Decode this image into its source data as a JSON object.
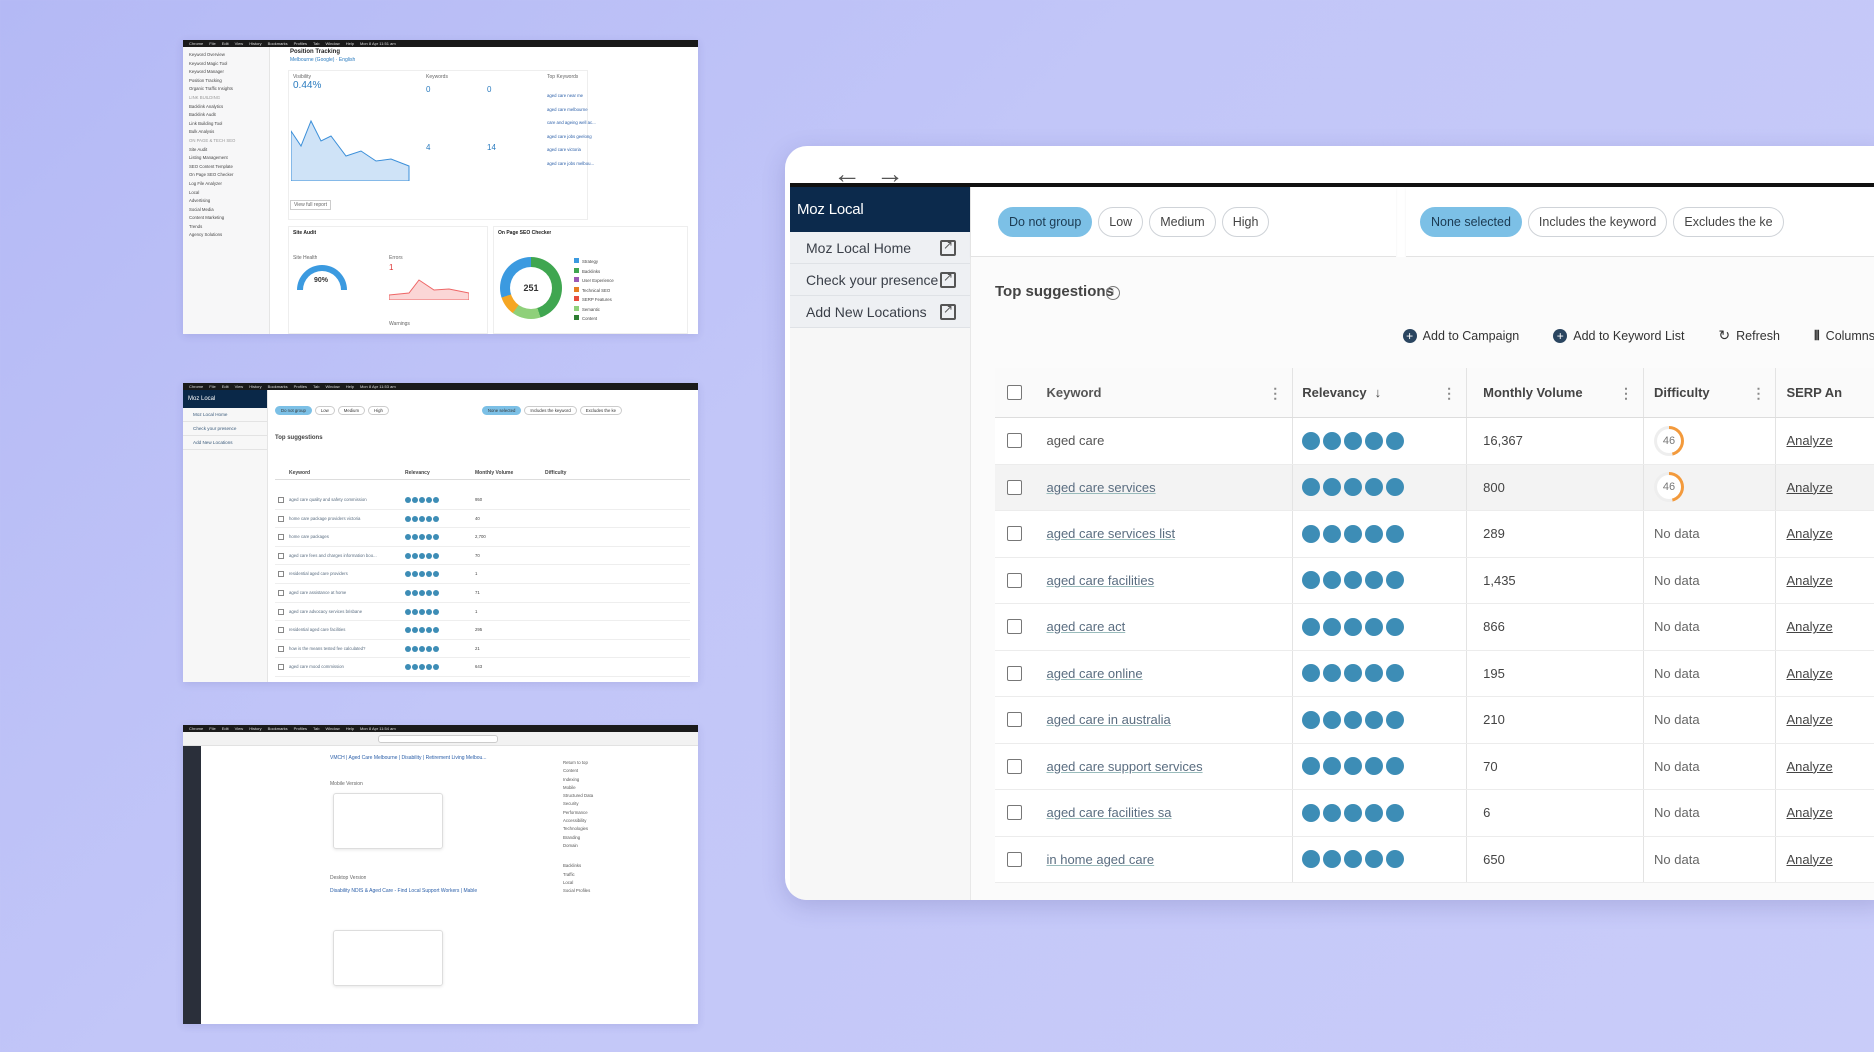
{
  "thumb1": {
    "menubar": [
      "Chrome",
      "File",
      "Edit",
      "View",
      "History",
      "Bookmarks",
      "Profiles",
      "Tab",
      "Window",
      "Help",
      "Mon 8 Apr 11:51 am"
    ],
    "sidebar": [
      "Keyword Overview",
      "Keyword Magic Tool",
      "Keyword Manager",
      "Position Tracking",
      "Organic Traffic Insights",
      "LINK BUILDING",
      "Backlink Analytics",
      "Backlink Audit",
      "Link Building Tool",
      "Bulk Analysis",
      "ON PAGE & TECH SEO",
      "Site Audit",
      "Listing Management",
      "SEO Content Template",
      "On Page SEO Checker",
      "Log File Analyzer",
      "Local",
      "Advertising",
      "Social Media",
      "Content Marketing",
      "Trends",
      "Agency Solutions"
    ],
    "title": "Position Tracking",
    "location": "Melbourne (Google) · English",
    "visibility_label": "Visibility",
    "visibility_value": "0.44%",
    "keywords_label": "Keywords",
    "top3": "0",
    "top10": "0",
    "top20": "4",
    "top100": "14",
    "top_keywords_label": "Top Keywords",
    "top_keywords": [
      "aged care near me",
      "aged care melbourne",
      "care and ageing well ac...",
      "aged care jobs geelong",
      "aged care victoria",
      "aged care jobs melbou..."
    ],
    "view_report": "View full report",
    "site_audit": "Site Audit",
    "site_health_label": "Site Health",
    "site_health": "90%",
    "errors_label": "Errors",
    "errors": "1",
    "warnings_label": "Warnings",
    "onpage_label": "On Page SEO Checker",
    "total_ideas": "251",
    "ideas_legend": [
      "Strategy",
      "Backlinks",
      "User Experience",
      "Technical SEO",
      "SERP Features",
      "Semantic",
      "Content"
    ]
  },
  "thumb2": {
    "menubar": [
      "Chrome",
      "File",
      "Edit",
      "View",
      "History",
      "Bookmarks",
      "Profiles",
      "Tab",
      "Window",
      "Help",
      "Mon 8 Apr 11:53 am"
    ],
    "keywords": [
      "aged care quality and safety commission",
      "home care package providers victoria",
      "home care packages",
      "aged care fees and charges information boo...",
      "residential aged care providers",
      "aged care assistance at home",
      "aged care advocacy services brisbane",
      "residential aged care facilities",
      "how is the means tested fee calculated?",
      "aged care mood commission"
    ],
    "volumes": [
      "950",
      "40",
      "2,700",
      "70",
      "1",
      "71",
      "1",
      "295",
      "21",
      "643"
    ]
  },
  "thumb3": {
    "menubar": [
      "Chrome",
      "File",
      "Edit",
      "View",
      "History",
      "Bookmarks",
      "Profiles",
      "Tab",
      "Window",
      "Help",
      "Mon 8 Apr 11:54 am"
    ],
    "result1_title": "VMCH | Aged Care Melbourne | Disability | Retirement Living Melbou...",
    "result2_title": "Disability NDIS & Aged Care - Find Local Support Workers | Mable",
    "mobile_version": "Mobile Version",
    "desktop_version": "Desktop Version",
    "right_links": [
      "Return to top",
      "Content",
      "Indexing",
      "Mobile",
      "Structured Data",
      "Security",
      "Performance",
      "Accessibility",
      "Technologies",
      "Branding",
      "Domain",
      "Backlinks",
      "Traffic",
      "Local",
      "Social Profiles"
    ]
  },
  "panel": {
    "back": "←",
    "forward": "→",
    "sidebar_title": "Moz Local",
    "sidebar_items": [
      {
        "label": "Moz Local Home"
      },
      {
        "label": "Check your presence"
      },
      {
        "label": "Add New Locations"
      }
    ],
    "group_pills": [
      "Do not group",
      "Low",
      "Medium",
      "High"
    ],
    "filter_pills": [
      "None selected",
      "Includes the keyword",
      "Excludes the ke"
    ],
    "top_suggestions": "Top suggestions",
    "actions": {
      "add_campaign": "Add to Campaign",
      "add_keyword_list": "Add to Keyword List",
      "refresh": "Refresh",
      "columns": "Columns"
    },
    "columns": {
      "keyword": "Keyword",
      "relevancy": "Relevancy",
      "monthly_volume": "Monthly Volume",
      "difficulty": "Difficulty",
      "serp": "SERP An"
    },
    "rows": [
      {
        "keyword": "aged care",
        "volume": "16,367",
        "difficulty": "46",
        "serp": "Analyze"
      },
      {
        "keyword": "aged care services",
        "volume": "800",
        "difficulty": "46",
        "serp": "Analyze"
      },
      {
        "keyword": "aged care services list",
        "volume": "289",
        "difficulty": "No data",
        "serp": "Analyze"
      },
      {
        "keyword": "aged care facilities",
        "volume": "1,435",
        "difficulty": "No data",
        "serp": "Analyze"
      },
      {
        "keyword": "aged care act",
        "volume": "866",
        "difficulty": "No data",
        "serp": "Analyze"
      },
      {
        "keyword": "aged care online",
        "volume": "195",
        "difficulty": "No data",
        "serp": "Analyze"
      },
      {
        "keyword": "aged care in australia",
        "volume": "210",
        "difficulty": "No data",
        "serp": "Analyze"
      },
      {
        "keyword": "aged care support services",
        "volume": "70",
        "difficulty": "No data",
        "serp": "Analyze"
      },
      {
        "keyword": "aged care facilities sa",
        "volume": "6",
        "difficulty": "No data",
        "serp": "Analyze"
      },
      {
        "keyword": "in home aged care",
        "volume": "650",
        "difficulty": "No data",
        "serp": "Analyze"
      }
    ]
  }
}
